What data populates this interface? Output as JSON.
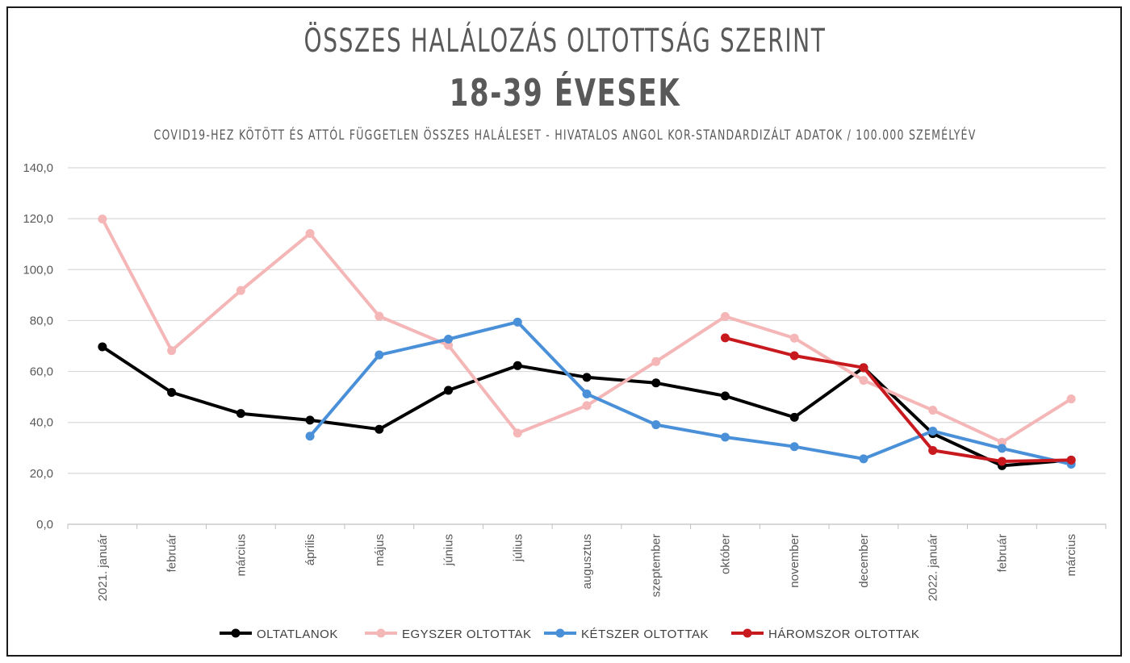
{
  "chart_data": {
    "type": "line",
    "title": "ÖSSZES HALÁLOZÁS OLTOTTSÁG SZERINT",
    "subtitle": "18-39 ÉVESEK",
    "note": "COVID19-HEZ KÖTÖTT ÉS ATTÓL FÜGGETLEN ÖSSZES HALÁLESET - HIVATALOS ANGOL KOR-STANDARDIZÁLT ADATOK / 100.000 SZEMÉLYÉV",
    "categories": [
      "2021. január",
      "február",
      "március",
      "április",
      "május",
      "június",
      "július",
      "augusztus",
      "szeptember",
      "október",
      "november",
      "december",
      "2022. január",
      "február",
      "március"
    ],
    "ylim": [
      0,
      140
    ],
    "yticks": [
      "0,0",
      "20,0",
      "40,0",
      "60,0",
      "80,0",
      "100,0",
      "120,0",
      "140,0"
    ],
    "grid": true,
    "legend_position": "bottom",
    "series": [
      {
        "name": "OLTATLANOK",
        "color": "#000000",
        "values": [
          69.7,
          51.8,
          43.5,
          40.9,
          37.3,
          52.6,
          62.3,
          57.7,
          55.5,
          50.4,
          42.0,
          61.5,
          35.6,
          23.0,
          25.2
        ]
      },
      {
        "name": "EGYSZER OLTOTTAK",
        "color": "#f4b6b6",
        "values": [
          119.9,
          68.2,
          91.8,
          114.2,
          81.7,
          70.3,
          35.8,
          46.6,
          63.9,
          81.6,
          73.1,
          56.5,
          44.8,
          32.2,
          49.2
        ]
      },
      {
        "name": "KÉTSZER OLTOTTAK",
        "color": "#4a90d9",
        "values": [
          null,
          null,
          null,
          34.6,
          66.5,
          72.7,
          79.4,
          51.2,
          39.1,
          34.2,
          30.5,
          25.7,
          36.6,
          29.8,
          23.6
        ]
      },
      {
        "name": "HÁROMSZOR OLTOTTAK",
        "color": "#c8191e",
        "values": [
          null,
          null,
          null,
          null,
          null,
          null,
          null,
          null,
          null,
          73.2,
          66.2,
          61.5,
          29.0,
          24.7,
          25.2
        ]
      }
    ]
  }
}
